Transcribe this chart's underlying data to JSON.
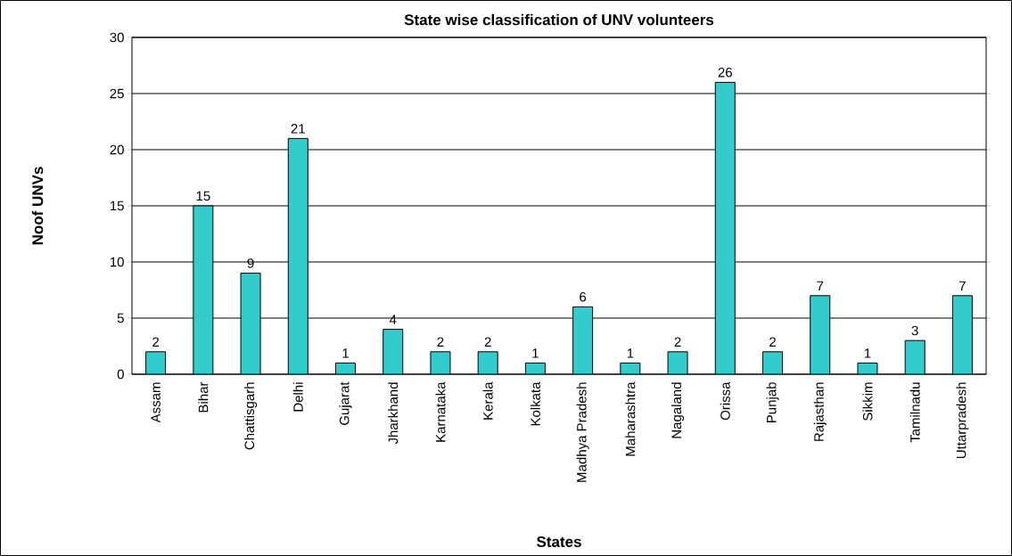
{
  "chart_data": {
    "type": "bar",
    "title": "State wise classification of UNV volunteers",
    "xlabel": "States",
    "ylabel": "Noof UNVs",
    "categories": [
      "Assam",
      "Bihar",
      "Chattisgarh",
      "Delhi",
      "Gujarat",
      "Jharkhand",
      "Karnataka",
      "Kerala",
      "Kolkata",
      "Madhya Pradesh",
      "Maharashtra",
      "Nagaland",
      "Orissa",
      "Punjab",
      "Rajasthan",
      "Sikkim",
      "Tamilnadu",
      "Uttarpradesh"
    ],
    "values": [
      2,
      15,
      9,
      21,
      1,
      4,
      2,
      2,
      1,
      6,
      1,
      2,
      26,
      2,
      7,
      1,
      3,
      7
    ],
    "color": "#33cccc",
    "ylim": [
      0,
      30
    ],
    "yticks": [
      0,
      5,
      10,
      15,
      20,
      25,
      30
    ],
    "grid": "y",
    "data_labels": true
  }
}
